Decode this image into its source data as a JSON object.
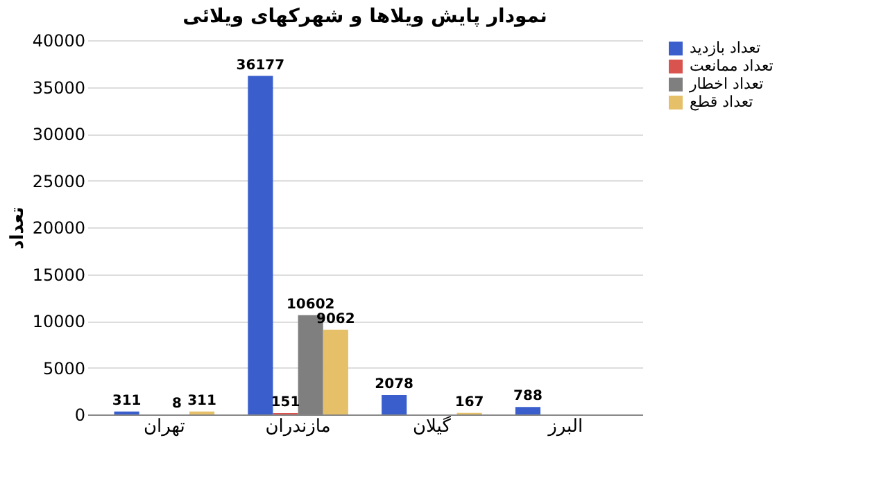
{
  "chart_data": {
    "type": "bar",
    "title": "نمودار پایش ویلاها و شهرکهای ویلائی",
    "ylabel": "تعداد",
    "categories": [
      "تهران",
      "مازندران",
      "گیلان",
      "البرز"
    ],
    "series": [
      {
        "name": "تعداد بازدید",
        "color": "#3a5fcd",
        "values": [
          311,
          36177,
          2078,
          788
        ]
      },
      {
        "name": "تعداد ممانعت",
        "color": "#d9534f",
        "values": [
          null,
          151,
          null,
          null
        ]
      },
      {
        "name": "تعداد اخطار",
        "color": "#7f7f7f",
        "values": [
          8,
          10602,
          null,
          null
        ]
      },
      {
        "name": "تعداد قطع",
        "color": "#e6c068",
        "values": [
          311,
          9062,
          167,
          null
        ]
      }
    ],
    "ylim": [
      0,
      40000
    ],
    "yticks": [
      0,
      5000,
      10000,
      15000,
      20000,
      25000,
      30000,
      35000,
      40000
    ],
    "grid": "y",
    "legend": "right",
    "data_labels": true
  }
}
